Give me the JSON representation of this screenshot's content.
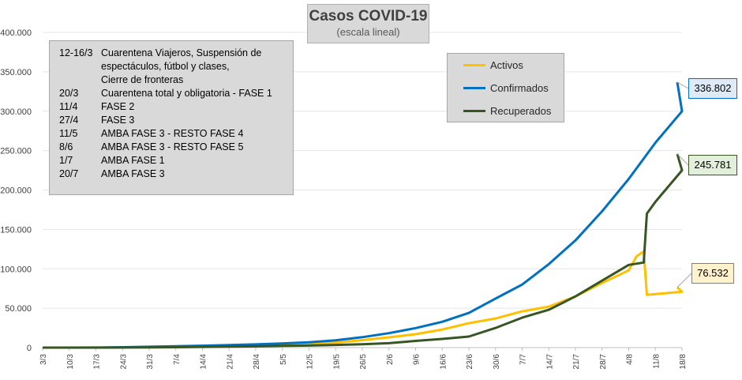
{
  "chart_data": {
    "type": "line",
    "title": "Casos COVID-19",
    "subtitle": "(escala lineal)",
    "xlabel": "",
    "ylabel": "",
    "ylim": [
      0,
      400000
    ],
    "yticks": [
      "0",
      "50.000",
      "100.000",
      "150.000",
      "200.000",
      "250.000",
      "300.000",
      "350.000",
      "400.000"
    ],
    "categories": [
      "3/3",
      "10/3",
      "17/3",
      "24/3",
      "31/3",
      "7/4",
      "14/4",
      "21/4",
      "28/4",
      "5/5",
      "12/5",
      "19/5",
      "26/5",
      "2/6",
      "9/6",
      "16/6",
      "23/6",
      "30/6",
      "7/7",
      "14/7",
      "21/7",
      "28/7",
      "4/8",
      "11/8",
      "18/8"
    ],
    "series": [
      {
        "name": "Activos",
        "color": "#FFC000",
        "values": [
          1,
          30,
          90,
          350,
          900,
          1500,
          2000,
          2300,
          2600,
          3000,
          4000,
          6200,
          9500,
          13000,
          17000,
          23000,
          31000,
          37000,
          46000,
          52000,
          65000,
          82000,
          98000,
          68000,
          71000
        ],
        "end": 76532
      },
      {
        "name": "Confirmados",
        "color": "#0070C0",
        "values": [
          1,
          30,
          90,
          500,
          1100,
          1700,
          2400,
          3200,
          4100,
          5200,
          6800,
          9300,
          13200,
          18300,
          24800,
          32800,
          44000,
          62300,
          80000,
          106000,
          136000,
          173000,
          214000,
          260000,
          300000
        ],
        "end": 336802
      },
      {
        "name": "Recuperados",
        "color": "#375623",
        "values": [
          0,
          0,
          0,
          60,
          250,
          500,
          900,
          1300,
          1600,
          2200,
          2600,
          3400,
          4300,
          5600,
          8500,
          11000,
          14000,
          25000,
          38000,
          48000,
          65000,
          85000,
          105000,
          185000,
          225000
        ],
        "end": 245781
      }
    ],
    "jump": {
      "activos_before": 122000,
      "recuperados_before": 108000,
      "activos_after": 67000,
      "recuperados_after": 170000
    },
    "end_labels": [
      "336.802",
      "245.781",
      "76.532"
    ]
  },
  "notes": [
    {
      "date": "12-16/3",
      "text": "Cuarentena Viajeros, Suspensión de"
    },
    {
      "date": "",
      "text": "espectáculos, fútbol y clases,"
    },
    {
      "date": "",
      "text": "Cierre de fronteras"
    },
    {
      "date": "20/3",
      "text": "Cuarentena total y obligatoria - FASE 1"
    },
    {
      "date": "11/4",
      "text": "FASE 2"
    },
    {
      "date": "27/4",
      "text": "FASE 3"
    },
    {
      "date": "11/5",
      "text": "AMBA FASE 3 - RESTO FASE 4"
    },
    {
      "date": "8/6",
      "text": "AMBA FASE 3 - RESTO FASE 5"
    },
    {
      "date": "1/7",
      "text": "AMBA FASE 1"
    },
    {
      "date": "20/7",
      "text": "AMBA FASE 3"
    }
  ],
  "legend": [
    "Activos",
    "Confirmados",
    "Recuperados"
  ],
  "callouts": [
    {
      "text": "336.802",
      "fill": "#DEEBF7",
      "border": "#0070C0"
    },
    {
      "text": "245.781",
      "fill": "#E2EFDA",
      "border": "#375623"
    },
    {
      "text": "76.532",
      "fill": "#FFF2CC",
      "border": "#7F7F7F"
    }
  ]
}
